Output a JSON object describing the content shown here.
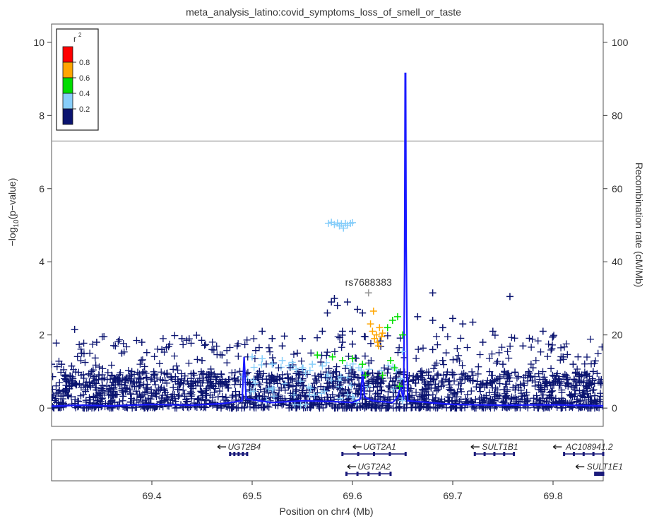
{
  "chart_data": {
    "type": "scatter",
    "title": "meta_analysis_latino:covid_symptoms_loss_of_smell_or_taste",
    "xlabel": "Position on chr4 (Mb)",
    "ylabel": "−log10(p−value)",
    "ylabel_parts": {
      "pre": "−log",
      "sub": "10",
      "post": "(p−value)"
    },
    "y2label": "Recombination rate (cM/Mb)",
    "xlim": [
      69.3,
      69.85
    ],
    "ylim": [
      -0.5,
      10.5
    ],
    "y2lim": [
      0,
      100
    ],
    "x_ticks": [
      69.4,
      69.5,
      69.6,
      69.7,
      69.8
    ],
    "x_tick_labels": [
      "69.4",
      "69.5",
      "69.6",
      "69.7",
      "69.8"
    ],
    "y_ticks": [
      0,
      2,
      4,
      6,
      8,
      10
    ],
    "y_tick_labels": [
      "0",
      "2",
      "4",
      "6",
      "8",
      "10"
    ],
    "y2_ticks": [
      0,
      20,
      40,
      60,
      80,
      100
    ],
    "y2_tick_labels": [
      "0",
      "20",
      "40",
      "60",
      "80",
      "100"
    ],
    "significance_line": 7.3,
    "legend": {
      "title": "r",
      "title_sup": "2",
      "placement": "top-left",
      "labels": [
        "0.8",
        "0.6",
        "0.4",
        "0.2"
      ],
      "colors": [
        "#0b1470",
        "#87cefa",
        "#00dd00",
        "#ffa500",
        "#ff0000"
      ]
    },
    "lead_snp": {
      "label": "rs7688383",
      "x": 69.616,
      "y": 3.15
    },
    "colors": {
      "r2_lowest": "#0b1470",
      "r2_low": "#87cefa",
      "r2_mid": "#00dd00",
      "r2_high": "#ffa500",
      "r2_top": "#ff0000",
      "recomb": "#1a1aff",
      "lead": "#999999"
    },
    "recombination": [
      [
        69.3,
        0.5
      ],
      [
        69.33,
        0.8
      ],
      [
        69.36,
        0.6
      ],
      [
        69.4,
        1.0
      ],
      [
        69.44,
        0.8
      ],
      [
        69.47,
        1.2
      ],
      [
        69.49,
        2.0
      ],
      [
        69.492,
        14.0
      ],
      [
        69.494,
        2.5
      ],
      [
        69.52,
        1.5
      ],
      [
        69.55,
        2.0
      ],
      [
        69.58,
        1.8
      ],
      [
        69.6,
        1.5
      ],
      [
        69.608,
        2.5
      ],
      [
        69.61,
        10.0
      ],
      [
        69.612,
        3.0
      ],
      [
        69.62,
        2.0
      ],
      [
        69.64,
        1.5
      ],
      [
        69.645,
        3.0
      ],
      [
        69.648,
        6.0
      ],
      [
        69.651,
        2.0
      ],
      [
        69.652,
        38.0
      ],
      [
        69.6525,
        91.5
      ],
      [
        69.653,
        91.5
      ],
      [
        69.6535,
        45.0
      ],
      [
        69.655,
        2.0
      ],
      [
        69.7,
        1.0
      ],
      [
        69.75,
        0.8
      ],
      [
        69.8,
        0.9
      ],
      [
        69.85,
        0.6
      ]
    ],
    "highlight_points": [
      {
        "x": 69.576,
        "y": 5.05,
        "r2": "low"
      },
      {
        "x": 69.579,
        "y": 5.08,
        "r2": "low"
      },
      {
        "x": 69.582,
        "y": 5.02,
        "r2": "low"
      },
      {
        "x": 69.585,
        "y": 5.06,
        "r2": "low"
      },
      {
        "x": 69.587,
        "y": 4.98,
        "r2": "low"
      },
      {
        "x": 69.589,
        "y": 5.04,
        "r2": "low"
      },
      {
        "x": 69.591,
        "y": 4.92,
        "r2": "low"
      },
      {
        "x": 69.593,
        "y": 5.05,
        "r2": "low"
      },
      {
        "x": 69.595,
        "y": 5.0,
        "r2": "low"
      },
      {
        "x": 69.598,
        "y": 5.05,
        "r2": "low"
      },
      {
        "x": 69.6,
        "y": 5.07,
        "r2": "low"
      },
      {
        "x": 69.618,
        "y": 2.3,
        "r2": "high"
      },
      {
        "x": 69.62,
        "y": 2.1,
        "r2": "high"
      },
      {
        "x": 69.622,
        "y": 1.9,
        "r2": "high"
      },
      {
        "x": 69.624,
        "y": 2.0,
        "r2": "high"
      },
      {
        "x": 69.625,
        "y": 1.8,
        "r2": "high"
      },
      {
        "x": 69.627,
        "y": 2.2,
        "r2": "high"
      },
      {
        "x": 69.629,
        "y": 1.95,
        "r2": "high"
      },
      {
        "x": 69.63,
        "y": 2.05,
        "r2": "high"
      },
      {
        "x": 69.621,
        "y": 2.65,
        "r2": "high"
      },
      {
        "x": 69.626,
        "y": 1.7,
        "r2": "high"
      },
      {
        "x": 69.64,
        "y": 2.4,
        "r2": "mid"
      },
      {
        "x": 69.645,
        "y": 2.5,
        "r2": "mid"
      },
      {
        "x": 69.65,
        "y": 2.0,
        "r2": "mid"
      },
      {
        "x": 69.638,
        "y": 1.3,
        "r2": "mid"
      },
      {
        "x": 69.58,
        "y": 1.4,
        "r2": "mid"
      },
      {
        "x": 69.59,
        "y": 1.3,
        "r2": "mid"
      },
      {
        "x": 69.6,
        "y": 1.35,
        "r2": "mid"
      },
      {
        "x": 69.565,
        "y": 1.45,
        "r2": "mid"
      },
      {
        "x": 69.642,
        "y": 1.1,
        "r2": "mid"
      },
      {
        "x": 69.61,
        "y": 1.2,
        "r2": "mid"
      },
      {
        "x": 69.63,
        "y": 0.9,
        "r2": "mid"
      },
      {
        "x": 69.647,
        "y": 0.6,
        "r2": "mid"
      },
      {
        "x": 69.613,
        "y": 0.9,
        "r2": "mid"
      },
      {
        "x": 69.635,
        "y": 2.2,
        "r2": "mid"
      },
      {
        "x": 69.5,
        "y": 1.4,
        "r2": "low"
      },
      {
        "x": 69.51,
        "y": 1.35,
        "r2": "low"
      },
      {
        "x": 69.52,
        "y": 1.2,
        "r2": "low"
      },
      {
        "x": 69.53,
        "y": 1.3,
        "r2": "low"
      },
      {
        "x": 69.54,
        "y": 1.25,
        "r2": "low"
      },
      {
        "x": 69.55,
        "y": 1.1,
        "r2": "low"
      },
      {
        "x": 69.56,
        "y": 1.2,
        "r2": "low"
      },
      {
        "x": 69.57,
        "y": 1.15,
        "r2": "low"
      },
      {
        "x": 69.65,
        "y": 1.55,
        "r2": "low"
      },
      {
        "x": 69.648,
        "y": 0.8,
        "r2": "low"
      },
      {
        "x": 69.52,
        "y": 0.5,
        "r2": "low"
      },
      {
        "x": 69.6,
        "y": 0.3,
        "r2": "low"
      },
      {
        "x": 69.65,
        "y": 0.2,
        "r2": "low"
      },
      {
        "x": 69.55,
        "y": 1.9,
        "r2": "lowest"
      },
      {
        "x": 69.57,
        "y": 2.1,
        "r2": "lowest"
      },
      {
        "x": 69.575,
        "y": 2.6,
        "r2": "lowest"
      },
      {
        "x": 69.579,
        "y": 2.9,
        "r2": "lowest"
      },
      {
        "x": 69.582,
        "y": 3.0,
        "r2": "lowest"
      },
      {
        "x": 69.585,
        "y": 2.8,
        "r2": "lowest"
      },
      {
        "x": 69.59,
        "y": 2.1,
        "r2": "lowest"
      },
      {
        "x": 69.595,
        "y": 2.9,
        "r2": "lowest"
      },
      {
        "x": 69.6,
        "y": 2.1,
        "r2": "lowest"
      },
      {
        "x": 69.605,
        "y": 2.7,
        "r2": "lowest"
      },
      {
        "x": 69.61,
        "y": 2.6,
        "r2": "lowest"
      },
      {
        "x": 69.59,
        "y": 1.8,
        "r2": "lowest"
      },
      {
        "x": 69.6,
        "y": 1.75,
        "r2": "lowest"
      },
      {
        "x": 69.665,
        "y": 2.5,
        "r2": "lowest"
      },
      {
        "x": 69.68,
        "y": 2.4,
        "r2": "lowest"
      },
      {
        "x": 69.69,
        "y": 2.2,
        "r2": "lowest"
      },
      {
        "x": 69.7,
        "y": 2.45,
        "r2": "lowest"
      },
      {
        "x": 69.71,
        "y": 2.3,
        "r2": "lowest"
      },
      {
        "x": 69.72,
        "y": 2.35,
        "r2": "lowest"
      },
      {
        "x": 69.68,
        "y": 3.15,
        "r2": "lowest"
      },
      {
        "x": 69.757,
        "y": 3.05,
        "r2": "lowest"
      },
      {
        "x": 69.73,
        "y": 1.8,
        "r2": "lowest"
      },
      {
        "x": 69.74,
        "y": 2.1,
        "r2": "lowest"
      },
      {
        "x": 69.79,
        "y": 2.1,
        "r2": "lowest"
      },
      {
        "x": 69.8,
        "y": 1.95,
        "r2": "lowest"
      },
      {
        "x": 69.77,
        "y": 1.7,
        "r2": "lowest"
      },
      {
        "x": 69.51,
        "y": 2.1,
        "r2": "lowest"
      },
      {
        "x": 69.52,
        "y": 1.9,
        "r2": "lowest"
      },
      {
        "x": 69.485,
        "y": 1.7,
        "r2": "lowest"
      },
      {
        "x": 69.46,
        "y": 1.6,
        "r2": "lowest"
      },
      {
        "x": 69.43,
        "y": 1.9,
        "r2": "lowest"
      },
      {
        "x": 69.41,
        "y": 1.6,
        "r2": "lowest"
      },
      {
        "x": 69.39,
        "y": 1.8,
        "r2": "lowest"
      },
      {
        "x": 69.37,
        "y": 1.5,
        "r2": "lowest"
      },
      {
        "x": 69.345,
        "y": 1.8,
        "r2": "lowest"
      },
      {
        "x": 69.323,
        "y": 2.15,
        "r2": "lowest"
      },
      {
        "x": 69.33,
        "y": 1.5,
        "r2": "lowest"
      },
      {
        "x": 69.31,
        "y": 1.2,
        "r2": "lowest"
      },
      {
        "x": 69.3,
        "y": 1.2,
        "r2": "lowest"
      },
      {
        "x": 69.32,
        "y": 1.15,
        "r2": "lowest"
      },
      {
        "x": 69.34,
        "y": 1.0,
        "r2": "lowest"
      },
      {
        "x": 69.36,
        "y": 0.9,
        "r2": "lowest"
      },
      {
        "x": 69.38,
        "y": 1.0,
        "r2": "lowest"
      },
      {
        "x": 69.45,
        "y": 1.3,
        "r2": "lowest"
      },
      {
        "x": 69.47,
        "y": 1.45,
        "r2": "lowest"
      },
      {
        "x": 69.53,
        "y": 1.7,
        "r2": "lowest"
      },
      {
        "x": 69.545,
        "y": 1.5,
        "r2": "lowest"
      },
      {
        "x": 69.68,
        "y": 1.6,
        "r2": "lowest"
      },
      {
        "x": 69.69,
        "y": 1.3,
        "r2": "lowest"
      },
      {
        "x": 69.75,
        "y": 1.2,
        "r2": "lowest"
      },
      {
        "x": 69.78,
        "y": 1.1,
        "r2": "lowest"
      },
      {
        "x": 69.82,
        "y": 1.2,
        "r2": "lowest"
      },
      {
        "x": 69.84,
        "y": 1.0,
        "r2": "lowest"
      },
      {
        "x": 69.81,
        "y": 1.4,
        "r2": "lowest"
      }
    ],
    "band_points_note": "",
    "genes": [
      {
        "name": "UGT2B4",
        "start": 69.478,
        "end": 69.495,
        "strand": "-",
        "row": 0
      },
      {
        "name": "UGT2A1",
        "start": 69.59,
        "end": 69.653,
        "strand": "-",
        "row": 0
      },
      {
        "name": "SULT1B1",
        "start": 69.722,
        "end": 69.761,
        "strand": "-",
        "row": 0
      },
      {
        "name": "AC108941.2",
        "start": 69.811,
        "end": 69.85,
        "strand": "-",
        "row": 0
      },
      {
        "name": "UGT2A2",
        "start": 69.594,
        "end": 69.638,
        "strand": "-",
        "row": 1
      },
      {
        "name": "SULT1E1",
        "start": 69.842,
        "end": 69.85,
        "strand": "-",
        "row": 1
      }
    ]
  }
}
